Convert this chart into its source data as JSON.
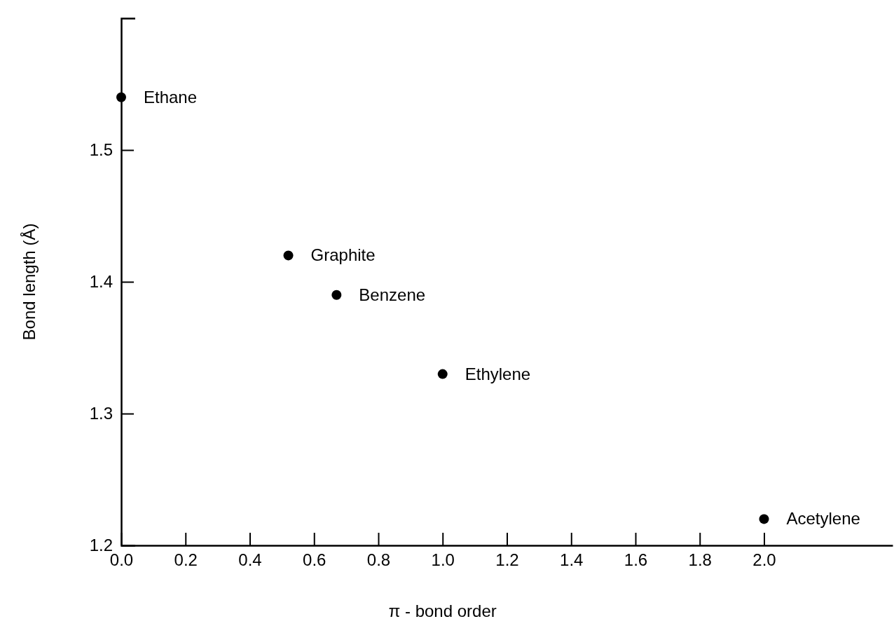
{
  "chart_data": {
    "type": "scatter",
    "xlabel": "π - bond order",
    "ylabel": "Bond length (Å)",
    "x": [
      0,
      0.52,
      0.67,
      1.0,
      2.0
    ],
    "values": [
      1.54,
      1.42,
      1.39,
      1.33,
      1.22
    ],
    "color": "#000000",
    "marker": "circle",
    "grid": false,
    "xlim": [
      0,
      2.4
    ],
    "xticks": [
      {
        "value": 0,
        "label": "0.0"
      },
      0.2,
      0.4,
      0.6,
      0.8,
      {
        "value": 1,
        "label": "1.0"
      },
      1.2,
      1.4,
      1.6,
      1.8,
      {
        "value": 2,
        "label": "2.0"
      }
    ],
    "ylim": [
      1.2,
      1.6
    ],
    "yticks": [
      1.2,
      1.3,
      1.4,
      1.5
    ],
    "annotations": [
      {
        "text": "Ethane",
        "x": 0,
        "y": 1.54
      },
      {
        "text": "Graphite",
        "x": 0.52,
        "y": 1.42
      },
      {
        "text": "Benzene",
        "x": 0.67,
        "y": 1.39
      },
      {
        "text": "Ethylene",
        "x": 1.0,
        "y": 1.33
      },
      {
        "text": "Acetylene",
        "x": 2.0,
        "y": 1.22
      }
    ]
  }
}
